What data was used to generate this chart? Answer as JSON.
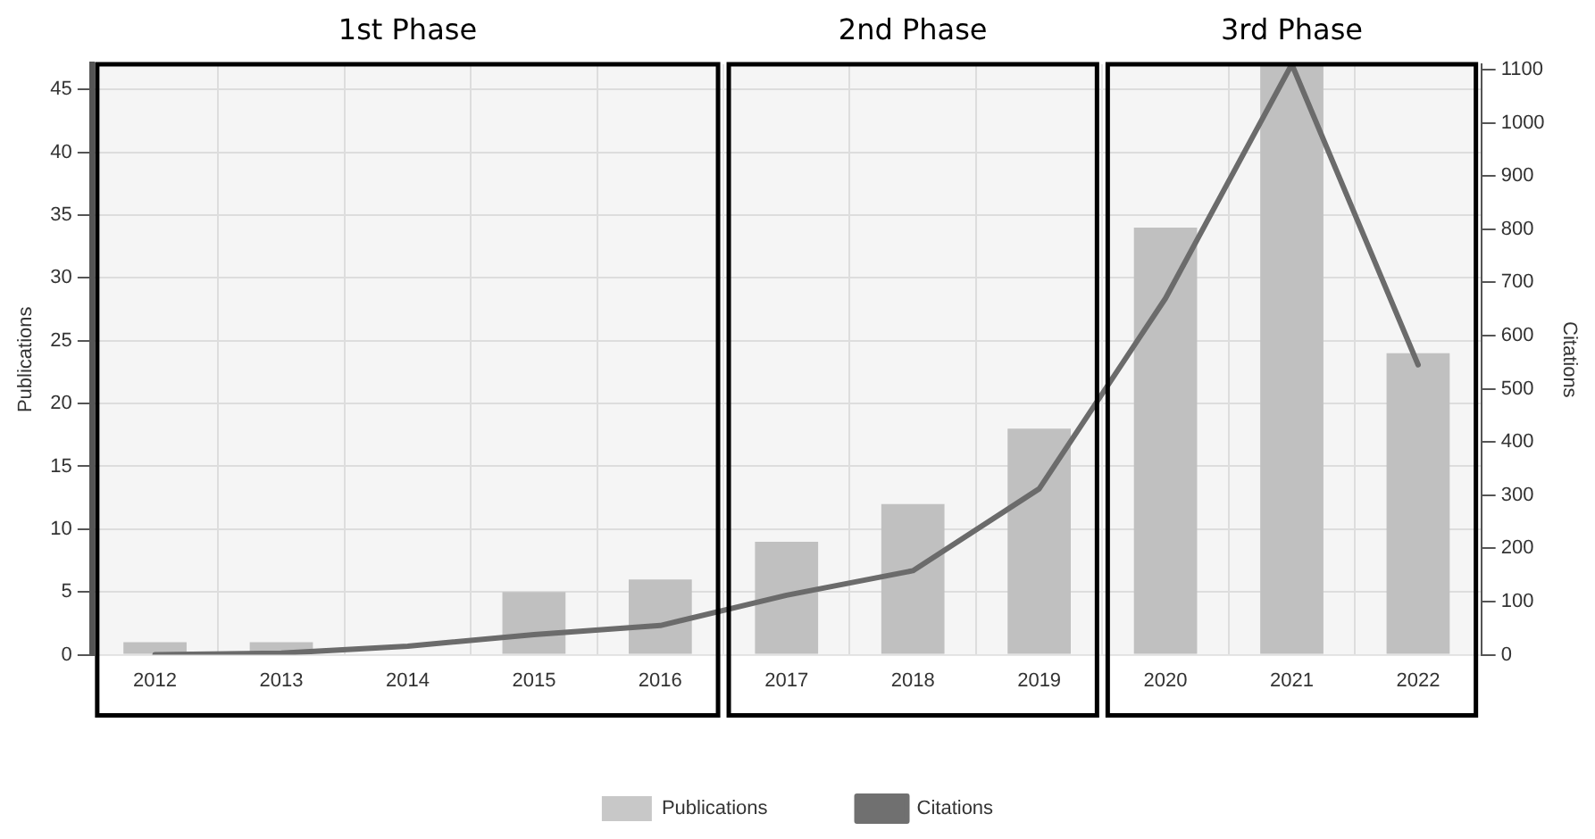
{
  "chart_data": {
    "type": "bar",
    "categories": [
      "2012",
      "2013",
      "2014",
      "2015",
      "2016",
      "2017",
      "2018",
      "2019",
      "2020",
      "2021",
      "2022"
    ],
    "series": [
      {
        "name": "Publications",
        "color": "#c8c8c8",
        "values": [
          1,
          1,
          0,
          5,
          6,
          9,
          12,
          18,
          34,
          47,
          24
        ]
      },
      {
        "name": "Citations",
        "type": "line",
        "axis": "y2",
        "color": "#707070",
        "values": [
          0,
          3,
          16,
          38,
          55,
          112,
          158,
          312,
          670,
          1110,
          545
        ]
      }
    ],
    "ylabel": "Publications",
    "y2label": "Citations",
    "ylim": [
      0,
      47
    ],
    "yticks": [
      0,
      5,
      10,
      15,
      20,
      25,
      30,
      35,
      40,
      45
    ],
    "y2lim": [
      0,
      1110
    ],
    "y2ticks": [
      0,
      100,
      200,
      300,
      400,
      500,
      600,
      700,
      800,
      900,
      1000,
      1100
    ],
    "bands": [
      {
        "axis": "x",
        "from": "2012",
        "to": "2016",
        "label": "1st Phase",
        "color": "#000000"
      },
      {
        "axis": "x",
        "from": "2017",
        "to": "2019",
        "label": "2nd Phase",
        "color": "#000000"
      },
      {
        "axis": "x",
        "from": "2020",
        "to": "2022",
        "label": "3rd Phase",
        "color": "#000000"
      }
    ],
    "grid": true,
    "legend": "bottom",
    "marker": "none",
    "line_style": "solid"
  }
}
